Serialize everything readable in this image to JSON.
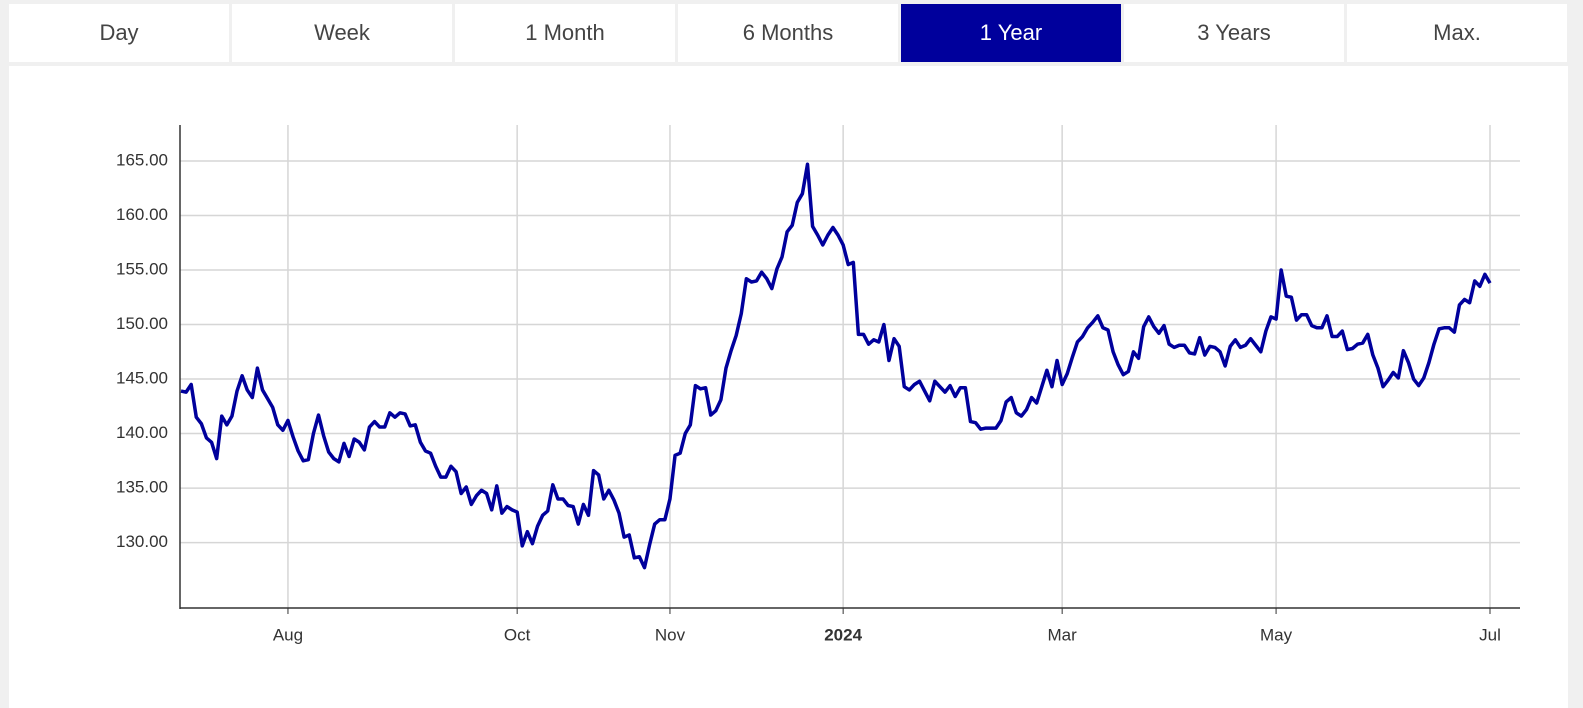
{
  "tabs": [
    {
      "label": "Day",
      "selected": false
    },
    {
      "label": "Week",
      "selected": false
    },
    {
      "label": "1 Month",
      "selected": false
    },
    {
      "label": "6 Months",
      "selected": false
    },
    {
      "label": "1 Year",
      "selected": true
    },
    {
      "label": "3 Years",
      "selected": false
    },
    {
      "label": "Max.",
      "selected": false
    }
  ],
  "chart_data": {
    "type": "line",
    "color": "#00009c",
    "grid": true,
    "ylim": [
      124,
      168.3
    ],
    "yticks": [
      {
        "value": 130,
        "label": "130.00"
      },
      {
        "value": 135,
        "label": "135.00"
      },
      {
        "value": 140,
        "label": "140.00"
      },
      {
        "value": 145,
        "label": "145.00"
      },
      {
        "value": 150,
        "label": "150.00"
      },
      {
        "value": 155,
        "label": "155.00"
      },
      {
        "value": 160,
        "label": "160.00"
      },
      {
        "value": 165,
        "label": "165.00"
      }
    ],
    "categories": [
      null,
      null,
      null,
      null,
      null,
      null,
      null,
      null,
      null,
      null,
      null,
      null,
      null,
      null,
      null,
      null,
      null,
      null,
      null,
      null,
      null,
      "Aug",
      null,
      null,
      null,
      null,
      null,
      null,
      null,
      null,
      null,
      null,
      null,
      null,
      null,
      null,
      null,
      null,
      null,
      null,
      null,
      null,
      null,
      null,
      null,
      null,
      null,
      null,
      null,
      null,
      null,
      null,
      null,
      null,
      null,
      null,
      null,
      null,
      null,
      null,
      null,
      null,
      null,
      null,
      null,
      null,
      "Oct",
      null,
      null,
      null,
      null,
      null,
      null,
      null,
      null,
      null,
      null,
      null,
      null,
      null,
      null,
      null,
      null,
      null,
      null,
      null,
      null,
      null,
      null,
      null,
      null,
      null,
      null,
      null,
      null,
      null,
      "Nov",
      null,
      null,
      null,
      null,
      null,
      null,
      null,
      null,
      null,
      null,
      null,
      null,
      null,
      null,
      null,
      null,
      null,
      null,
      null,
      null,
      null,
      null,
      null,
      null,
      null,
      null,
      null,
      null,
      null,
      null,
      null,
      null,
      null,
      "2024",
      null,
      null,
      null,
      null,
      null,
      null,
      null,
      null,
      null,
      null,
      null,
      null,
      null,
      null,
      null,
      null,
      null,
      null,
      null,
      null,
      null,
      null,
      null,
      null,
      null,
      null,
      null,
      null,
      null,
      null,
      null,
      null,
      null,
      null,
      null,
      null,
      null,
      null,
      null,
      null,
      null,
      null,
      "Mar",
      null,
      null,
      null,
      null,
      null,
      null,
      null,
      null,
      null,
      null,
      null,
      null,
      null,
      null,
      null,
      null,
      null,
      null,
      null,
      null,
      null,
      null,
      null,
      null,
      null,
      null,
      null,
      null,
      null,
      null,
      null,
      null,
      null,
      null,
      null,
      null,
      null,
      null,
      null,
      null,
      null,
      "May",
      null,
      null,
      null,
      null,
      null,
      null,
      null,
      null,
      null,
      null,
      null,
      null,
      null,
      null,
      null,
      null,
      null,
      null,
      null,
      null,
      null,
      null,
      null,
      null,
      null,
      null,
      null,
      null,
      null,
      null,
      null,
      null,
      null,
      null,
      null,
      null,
      null,
      null,
      null,
      null,
      null,
      "Jul"
    ],
    "values": [
      143.9,
      143.8,
      144.5,
      141.5,
      140.9,
      139.6,
      139.2,
      137.7,
      141.6,
      140.8,
      141.6,
      143.9,
      145.3,
      144,
      143.3,
      146,
      144,
      143.2,
      142.4,
      140.8,
      140.3,
      141.2,
      139.7,
      138.4,
      137.5,
      137.6,
      140,
      141.7,
      139.8,
      138.3,
      137.7,
      137.4,
      139.1,
      137.9,
      139.5,
      139.2,
      138.5,
      140.6,
      141.1,
      140.6,
      140.6,
      141.9,
      141.5,
      141.9,
      141.8,
      140.7,
      140.8,
      139.2,
      138.4,
      138.2,
      137,
      136,
      136,
      137,
      136.5,
      134.5,
      135.1,
      133.5,
      134.3,
      134.8,
      134.5,
      133,
      135.2,
      132.7,
      133.3,
      133,
      132.8,
      129.7,
      131,
      129.9,
      131.5,
      132.5,
      132.9,
      135.3,
      134,
      134,
      133.4,
      133.3,
      131.7,
      133.5,
      132.5,
      136.6,
      136.2,
      134,
      134.8,
      133.9,
      132.7,
      130.5,
      130.7,
      128.6,
      128.7,
      127.7,
      129.8,
      131.7,
      132.1,
      132.1,
      134,
      138,
      138.2,
      140,
      140.8,
      144.4,
      144.1,
      144.2,
      141.7,
      142.1,
      143.1,
      146,
      147.6,
      149,
      151,
      154.2,
      153.9,
      154,
      154.8,
      154.2,
      153.3,
      155.1,
      156.2,
      158.5,
      159.1,
      161.2,
      162,
      164.7,
      159,
      158.2,
      157.3,
      158.2,
      158.9,
      158.2,
      157.3,
      155.5,
      155.7,
      149.1,
      149.1,
      148.2,
      148.6,
      148.4,
      150,
      146.7,
      148.7,
      148,
      144.3,
      144,
      144.5,
      144.8,
      143.9,
      143,
      144.8,
      144.3,
      143.8,
      144.4,
      143.4,
      144.2,
      144.2,
      141.1,
      141,
      140.4,
      140.5,
      140.5,
      140.5,
      141.2,
      142.9,
      143.3,
      141.9,
      141.6,
      142.2,
      143.3,
      142.8,
      144.3,
      145.8,
      144.3,
      146.7,
      144.5,
      145.5,
      147,
      148.4,
      148.9,
      149.7,
      150.2,
      150.8,
      149.7,
      149.5,
      147.5,
      146.3,
      145.4,
      145.7,
      147.5,
      146.9,
      149.8,
      150.7,
      149.8,
      149.2,
      149.9,
      148.2,
      147.9,
      148.1,
      148.1,
      147.4,
      147.3,
      148.8,
      147.2,
      148,
      147.9,
      147.5,
      146.2,
      148,
      148.6,
      147.9,
      148.1,
      148.7,
      148.1,
      147.5,
      149.4,
      150.7,
      150.5,
      155,
      152.6,
      152.5,
      150.4,
      150.9,
      150.9,
      149.9,
      149.7,
      149.7,
      150.8,
      148.9,
      148.9,
      149.4,
      147.7,
      147.8,
      148.2,
      148.3,
      149.1,
      147.2,
      146,
      144.3,
      144.9,
      145.6,
      145.1,
      147.6,
      146.5,
      145,
      144.4,
      145.1,
      146.5,
      148.2,
      149.6,
      149.7,
      149.7,
      149.3,
      151.8,
      152.3,
      152,
      154,
      153.5,
      154.6,
      153.8
    ]
  }
}
